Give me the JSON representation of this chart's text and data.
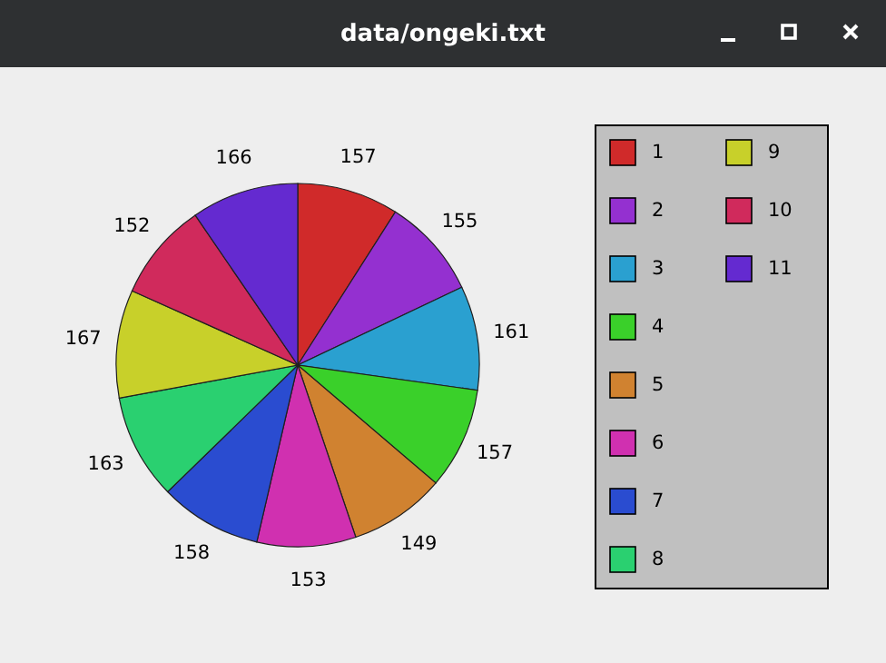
{
  "chart_data": {
    "type": "pie",
    "title": "data/ongeki.txt",
    "categories": [
      "1",
      "2",
      "3",
      "4",
      "5",
      "6",
      "7",
      "8",
      "9",
      "10",
      "11"
    ],
    "values": [
      157,
      155,
      161,
      157,
      149,
      153,
      158,
      163,
      167,
      152,
      166
    ],
    "colors": [
      "#d02a2a",
      "#9430d0",
      "#2aa0d0",
      "#3ad02a",
      "#d08230",
      "#d030b0",
      "#2a4cd0",
      "#2ad070",
      "#c8d02a",
      "#d02a5c",
      "#642ad0"
    ],
    "data_labels": true,
    "legend": "right"
  }
}
